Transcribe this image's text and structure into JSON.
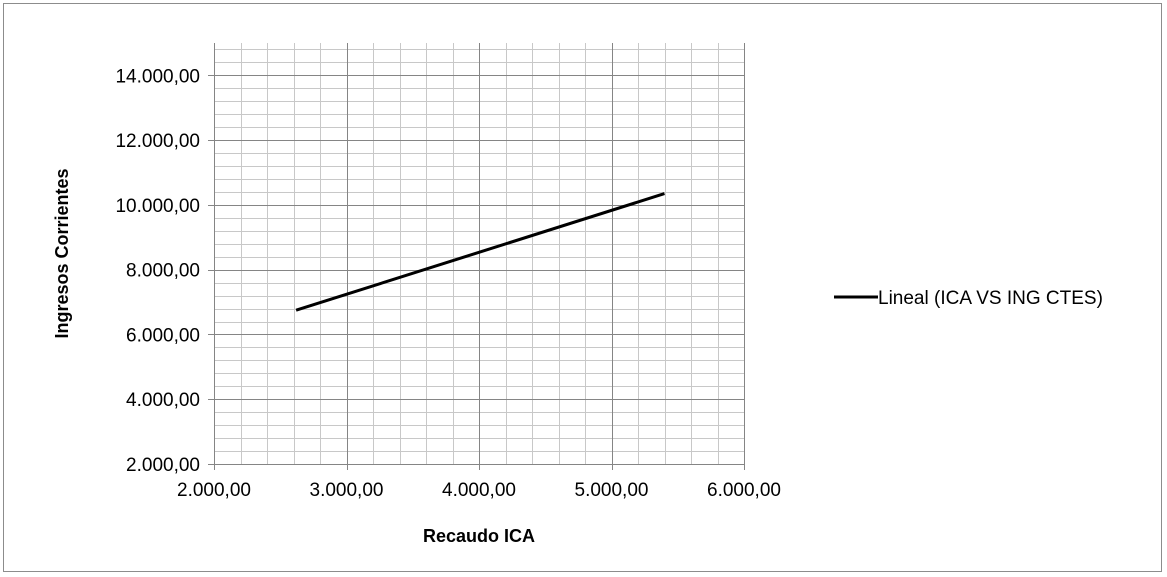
{
  "chart_data": {
    "type": "line",
    "title": "",
    "xlabel": "Recaudo ICA",
    "ylabel": "Ingresos Corrientes",
    "xlim": [
      2000,
      6000
    ],
    "ylim": [
      2000,
      15000
    ],
    "x_ticks": [
      2000,
      3000,
      4000,
      5000,
      6000
    ],
    "x_tick_labels": [
      "2.000,00",
      "3.000,00",
      "4.000,00",
      "5.000,00",
      "6.000,00"
    ],
    "y_ticks": [
      2000,
      4000,
      6000,
      8000,
      10000,
      12000,
      14000
    ],
    "y_tick_labels": [
      "2.000,00",
      "4.000,00",
      "6.000,00",
      "8.000,00",
      "10.000,00",
      "12.000,00",
      "14.000,00"
    ],
    "grid": {
      "major": true,
      "minor": true,
      "x_minor_step": 200,
      "y_minor_step": 400
    },
    "legend_position": "right",
    "series": [
      {
        "name": "Lineal (ICA VS ING CTES)",
        "color": "#000000",
        "x": [
          2620,
          5400
        ],
        "y": [
          6750,
          10350
        ]
      }
    ]
  }
}
